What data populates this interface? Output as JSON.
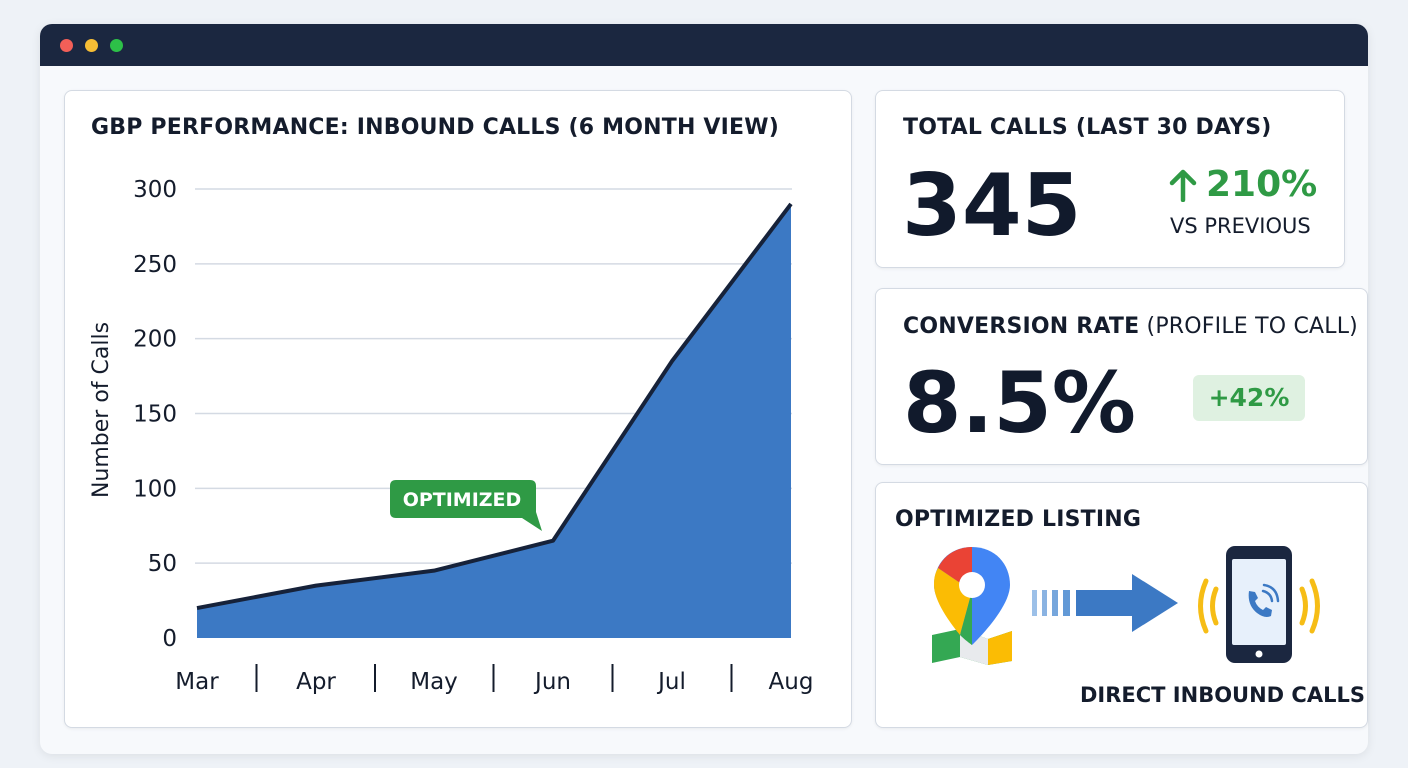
{
  "window": {
    "controls": [
      "close",
      "minimize",
      "maximize"
    ]
  },
  "colors": {
    "accent": "#3c79c4",
    "positive": "#2f9a45",
    "titlebar": "#1b2740"
  },
  "chart": {
    "title": "GBP PERFORMANCE: INBOUND CALLS (6 MONTH VIEW)",
    "annotation": "OPTIMIZED"
  },
  "chart_data": {
    "type": "area",
    "title": "GBP PERFORMANCE: INBOUND CALLS (6 MONTH VIEW)",
    "xlabel": "",
    "ylabel": "Number of Calls",
    "categories": [
      "Mar",
      "Apr",
      "May",
      "Jun",
      "Jul",
      "Aug"
    ],
    "series": [
      {
        "values": [
          20,
          35,
          45,
          65,
          185,
          290
        ]
      }
    ],
    "ylim": [
      0,
      300
    ],
    "yticks": [
      0,
      50,
      100,
      150,
      200,
      250,
      300
    ],
    "grid": true,
    "legend": "none",
    "annotations": [
      {
        "text": "OPTIMIZED",
        "x": "Jun"
      }
    ]
  },
  "total_calls": {
    "title": "TOTAL CALLS (LAST 30 DAYS)",
    "value": "345",
    "change": "210%",
    "change_icon": "arrow-up-icon",
    "change_caption": "VS PREVIOUS"
  },
  "conversion": {
    "title_bold": "CONVERSION RATE",
    "title_rest": " (PROFILE TO CALL)",
    "value": "8.5%",
    "badge": "+42%"
  },
  "listing": {
    "title": "OPTIMIZED LISTING",
    "caption": "DIRECT INBOUND CALLS",
    "icons": [
      "map-pin-icon",
      "arrow-right-icon",
      "phone-call-icon"
    ]
  }
}
